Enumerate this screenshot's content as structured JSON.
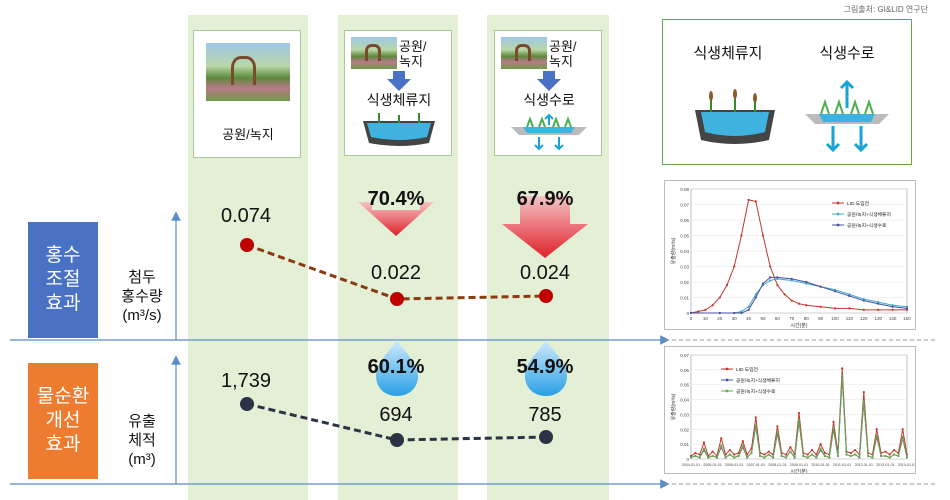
{
  "source": "그림출처: GI&LID 연구단",
  "columns": [
    {
      "label": "공원/녹지"
    },
    {
      "top_label": "공원/\n녹지",
      "label": "식생체류지"
    },
    {
      "top_label": "공원/\n녹지",
      "label": "식생수로"
    }
  ],
  "legend_box": {
    "item1": "식생체류지",
    "item2": "식생수로"
  },
  "flood": {
    "title": "홍수\n조절\n효과",
    "ylabel": "첨두\n홍수량\n(m³/s)",
    "values": [
      "0.074",
      "0.022",
      "0.024"
    ],
    "reductions": [
      "70.4%",
      "67.9%"
    ]
  },
  "water": {
    "title": "물순환\n개선\n효과",
    "ylabel": "유출\n체적\n(m³)",
    "values": [
      "1,739",
      "694",
      "785"
    ],
    "reductions": [
      "60.1%",
      "54.9%"
    ]
  },
  "colors": {
    "flood_box": "#4a72c4",
    "water_box": "#ed7b30",
    "flood_line": "#8b3a12",
    "water_line": "#2a3444",
    "dot_flood": "#c00000",
    "dot_water": "#2a3444"
  },
  "chart_data": [
    {
      "type": "line",
      "role": "peak-flood-comparison",
      "categories": [
        "공원/녹지",
        "식생체류지",
        "식생수로"
      ],
      "values": [
        0.074,
        0.022,
        0.024
      ]
    },
    {
      "type": "line",
      "role": "runoff-volume-comparison",
      "categories": [
        "공원/녹지",
        "식생체류지",
        "식생수로"
      ],
      "values": [
        1739,
        694,
        785
      ]
    },
    {
      "type": "line",
      "xlabel": "시간(분)",
      "ylabel": "유출량(m³/s)",
      "xlim": [
        0,
        150
      ],
      "ylim": [
        0,
        0.08
      ],
      "xticks": [
        "0",
        "10",
        "20",
        "30",
        "40",
        "50",
        "60",
        "70",
        "80",
        "90",
        "100",
        "110",
        "120",
        "130",
        "140",
        "150"
      ],
      "yticks": [
        "0",
        "0.01",
        "0.02",
        "0.03",
        "0.04",
        "0.05",
        "0.06",
        "0.07",
        "0.08"
      ],
      "series": [
        {
          "name": "LID 도입전",
          "color": "#c0392b",
          "x": [
            0,
            5,
            10,
            15,
            20,
            25,
            30,
            35,
            40,
            45,
            50,
            55,
            60,
            65,
            70,
            75,
            80,
            90,
            100,
            110,
            120,
            130,
            140,
            150
          ],
          "y": [
            0,
            0.001,
            0.002,
            0.005,
            0.01,
            0.018,
            0.03,
            0.05,
            0.073,
            0.072,
            0.05,
            0.03,
            0.018,
            0.012,
            0.008,
            0.006,
            0.005,
            0.004,
            0.003,
            0.003,
            0.002,
            0.002,
            0.002,
            0.002
          ]
        },
        {
          "name": "공원/녹지+식생체류지",
          "color": "#3fa9c5",
          "x": [
            0,
            20,
            30,
            35,
            40,
            45,
            50,
            55,
            60,
            70,
            80,
            90,
            100,
            110,
            120,
            130,
            140,
            150
          ],
          "y": [
            0,
            0,
            0,
            0.001,
            0.004,
            0.012,
            0.018,
            0.021,
            0.022,
            0.021,
            0.019,
            0.017,
            0.015,
            0.012,
            0.009,
            0.007,
            0.005,
            0.004
          ]
        },
        {
          "name": "공원/녹지+식생수로",
          "color": "#4b4fa0",
          "x": [
            0,
            20,
            30,
            35,
            40,
            45,
            50,
            55,
            60,
            70,
            80,
            90,
            100,
            110,
            120,
            130,
            140,
            150
          ],
          "y": [
            0,
            0,
            0,
            0,
            0.002,
            0.01,
            0.019,
            0.023,
            0.023,
            0.022,
            0.02,
            0.017,
            0.014,
            0.011,
            0.008,
            0.006,
            0.004,
            0.003
          ]
        }
      ],
      "legend": "top-right"
    },
    {
      "type": "line",
      "xlabel": "시간(분)",
      "ylabel": "유출량(m³/s)",
      "ylim": [
        0,
        0.07
      ],
      "yticks": [
        "0",
        "0.01",
        "0.02",
        "0.03",
        "0.04",
        "0.05",
        "0.06",
        "0.07"
      ],
      "xticks": [
        "2004-01-01",
        "2005-01-01",
        "2006-01-01",
        "2007-01-01",
        "2008-01-01",
        "2009-01-01",
        "2010-01-01",
        "2011-01-01",
        "2012-01-01",
        "2013-01-01",
        "2014-01-01"
      ],
      "series": [
        {
          "name": "LID 도입전",
          "color": "#c0392b",
          "x": [
            0,
            2,
            4,
            6,
            8,
            10,
            12,
            14,
            16,
            18,
            20,
            22,
            24,
            26,
            28,
            30,
            32,
            34,
            36,
            38,
            40,
            42,
            44,
            46,
            48,
            50,
            52,
            54,
            56,
            58,
            60,
            62,
            64,
            66,
            68,
            70,
            72,
            74,
            76,
            78,
            80,
            82,
            84,
            86,
            88,
            90,
            92,
            94,
            96,
            98,
            100
          ],
          "y": [
            0.002,
            0.004,
            0.003,
            0.011,
            0.002,
            0.005,
            0.002,
            0.014,
            0.003,
            0.006,
            0.003,
            0.004,
            0.012,
            0.003,
            0.007,
            0.028,
            0.004,
            0.003,
            0.005,
            0.003,
            0.022,
            0.004,
            0.003,
            0.008,
            0.003,
            0.031,
            0.004,
            0.003,
            0.006,
            0.003,
            0.01,
            0.004,
            0.003,
            0.025,
            0.004,
            0.061,
            0.005,
            0.004,
            0.006,
            0.003,
            0.045,
            0.004,
            0.003,
            0.02,
            0.004,
            0.005,
            0.003,
            0.006,
            0.004,
            0.02,
            0.003
          ]
        },
        {
          "name": "공원/녹지+식생체류지",
          "color": "#4b4fa0",
          "x": [
            0,
            2,
            4,
            6,
            8,
            10,
            12,
            14,
            16,
            18,
            20,
            22,
            24,
            26,
            28,
            30,
            32,
            34,
            36,
            38,
            40,
            42,
            44,
            46,
            48,
            50,
            52,
            54,
            56,
            58,
            60,
            62,
            64,
            66,
            68,
            70,
            72,
            74,
            76,
            78,
            80,
            82,
            84,
            86,
            88,
            90,
            92,
            94,
            96,
            98,
            100
          ],
          "y": [
            0.001,
            0.002,
            0.001,
            0.006,
            0.001,
            0.002,
            0.001,
            0.008,
            0.001,
            0.003,
            0.001,
            0.002,
            0.008,
            0.001,
            0.004,
            0.022,
            0.002,
            0.001,
            0.003,
            0.001,
            0.017,
            0.002,
            0.001,
            0.005,
            0.001,
            0.025,
            0.002,
            0.001,
            0.003,
            0.001,
            0.006,
            0.002,
            0.001,
            0.02,
            0.002,
            0.055,
            0.003,
            0.002,
            0.003,
            0.001,
            0.038,
            0.002,
            0.001,
            0.015,
            0.002,
            0.002,
            0.001,
            0.003,
            0.002,
            0.014,
            0.001
          ]
        },
        {
          "name": "공원/녹지+식생수로",
          "color": "#6aa84f",
          "x": [
            0,
            2,
            4,
            6,
            8,
            10,
            12,
            14,
            16,
            18,
            20,
            22,
            24,
            26,
            28,
            30,
            32,
            34,
            36,
            38,
            40,
            42,
            44,
            46,
            48,
            50,
            52,
            54,
            56,
            58,
            60,
            62,
            64,
            66,
            68,
            70,
            72,
            74,
            76,
            78,
            80,
            82,
            84,
            86,
            88,
            90,
            92,
            94,
            96,
            98,
            100
          ],
          "y": [
            0.001,
            0.002,
            0.001,
            0.007,
            0.001,
            0.002,
            0.001,
            0.009,
            0.001,
            0.003,
            0.001,
            0.002,
            0.009,
            0.001,
            0.004,
            0.023,
            0.002,
            0.001,
            0.003,
            0.001,
            0.018,
            0.002,
            0.001,
            0.005,
            0.001,
            0.026,
            0.002,
            0.001,
            0.003,
            0.001,
            0.007,
            0.002,
            0.001,
            0.021,
            0.002,
            0.056,
            0.003,
            0.002,
            0.003,
            0.001,
            0.039,
            0.002,
            0.001,
            0.016,
            0.002,
            0.002,
            0.001,
            0.003,
            0.002,
            0.015,
            0.001
          ]
        }
      ],
      "legend": "top-left"
    }
  ]
}
